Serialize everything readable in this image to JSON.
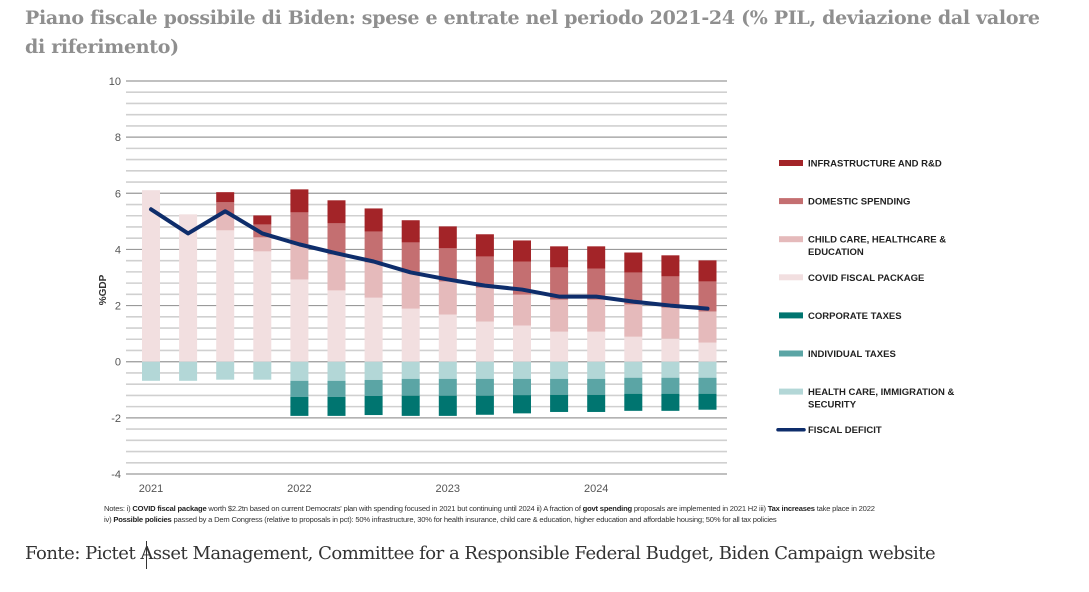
{
  "title": "Piano fiscale possibile di Biden: spese e entrate nel periodo 2021-24 (% PIL, deviazione dal valore di riferimento)",
  "source": "Fonte: Pictet Asset Management, Committee for a Responsible Federal Budget, Biden Campaign website",
  "notes": {
    "line1": [
      {
        "t": "Notes: i) ",
        "b": false
      },
      {
        "t": "COVID fiscal package",
        "b": true
      },
      {
        "t": " worth $2.2tn based on current Democrats' plan with spending focused in 2021 but continuing until 2024 ii) A fraction of ",
        "b": false
      },
      {
        "t": "govt spending",
        "b": true
      },
      {
        "t": " proposals are implemented in 2021 H2 iii) ",
        "b": false
      },
      {
        "t": "Tax increases",
        "b": true
      },
      {
        "t": " take place in 2022",
        "b": false
      }
    ],
    "line2": [
      {
        "t": " iv) ",
        "b": false
      },
      {
        "t": "Possible policies",
        "b": true
      },
      {
        "t": " passed by a Dem Congress (relative to proposals in pct): 50% infrastructure, 30% for health insurance, child care & education, higher education and affordable housing; 50% for all tax policies",
        "b": false
      }
    ]
  },
  "chart_data": {
    "type": "bar",
    "stacked": true,
    "title": "Piano fiscale possibile di Biden: spese e entrate nel periodo 2021-24 (% PIL, deviazione dal valore di riferimento)",
    "xlabel": "",
    "ylabel": "%GDP",
    "ylim": [
      -4,
      10
    ],
    "yticks": [
      -4,
      -2,
      0,
      2,
      4,
      6,
      8,
      10
    ],
    "grid": true,
    "legend_position": "right",
    "categories": [
      "2021 Q1",
      "2021 Q2",
      "2021 Q3",
      "2021 Q4",
      "2022 Q1",
      "2022 Q2",
      "2022 Q3",
      "2022 Q4",
      "2023 Q1",
      "2023 Q2",
      "2023 Q3",
      "2023 Q4",
      "2024 Q1",
      "2024 Q2",
      "2024 Q3",
      "2024 Q4"
    ],
    "xtick_labels": [
      {
        "index": 0,
        "label": "2021"
      },
      {
        "index": 4,
        "label": "2022"
      },
      {
        "index": 8,
        "label": "2023"
      },
      {
        "index": 12,
        "label": "2024"
      }
    ],
    "series": [
      {
        "name": "COVID FISCAL PACKAGE",
        "color": "#f2dfe0",
        "kind": "bar",
        "values": [
          6.11,
          5.25,
          4.68,
          3.93,
          2.93,
          2.54,
          2.28,
          1.89,
          1.68,
          1.43,
          1.29,
          1.07,
          1.07,
          0.89,
          0.82,
          0.68
        ]
      },
      {
        "name": "CHILD CARE, HEALTHCARE & EDUCATION",
        "color": "#e5babb",
        "kind": "bar",
        "values": [
          0,
          0,
          0.57,
          0.5,
          1.25,
          1.28,
          1.26,
          1.29,
          1.18,
          1.21,
          1.1,
          1.14,
          1.14,
          1.15,
          1.11,
          1.11
        ]
      },
      {
        "name": "DOMESTIC SPENDING",
        "color": "#c46f71",
        "kind": "bar",
        "values": [
          0,
          0,
          0.43,
          0.46,
          1.14,
          1.11,
          1.1,
          1.07,
          1.18,
          1.11,
          1.18,
          1.15,
          1.11,
          1.14,
          1.11,
          1.07
        ]
      },
      {
        "name": "INFRASTRUCTURE AND R&D",
        "color": "#a32428",
        "kind": "bar",
        "values": [
          0,
          0,
          0.36,
          0.32,
          0.82,
          0.82,
          0.82,
          0.79,
          0.78,
          0.79,
          0.75,
          0.75,
          0.79,
          0.71,
          0.75,
          0.75
        ]
      },
      {
        "name": "HEALTH CARE, IMMIGRATION & SECURITY",
        "color": "#b3d7d7",
        "kind": "bar",
        "values": [
          -0.68,
          -0.68,
          -0.64,
          -0.64,
          -0.68,
          -0.68,
          -0.65,
          -0.61,
          -0.61,
          -0.61,
          -0.61,
          -0.61,
          -0.61,
          -0.57,
          -0.57,
          -0.57
        ]
      },
      {
        "name": "INDIVIDUAL TAXES",
        "color": "#5ba5a5",
        "kind": "bar",
        "values": [
          0,
          0,
          0,
          0,
          -0.57,
          -0.57,
          -0.57,
          -0.6,
          -0.6,
          -0.6,
          -0.58,
          -0.57,
          -0.57,
          -0.57,
          -0.57,
          -0.57
        ]
      },
      {
        "name": "CORPORATE TAXES",
        "color": "#007570",
        "kind": "bar",
        "values": [
          0,
          0,
          0,
          0,
          -0.68,
          -0.68,
          -0.68,
          -0.72,
          -0.72,
          -0.68,
          -0.65,
          -0.61,
          -0.61,
          -0.61,
          -0.61,
          -0.57
        ]
      },
      {
        "name": "FISCAL DEFICIT",
        "color": "#0e2d6b",
        "kind": "line",
        "values": [
          5.43,
          4.57,
          5.36,
          4.57,
          4.18,
          3.86,
          3.57,
          3.18,
          2.93,
          2.71,
          2.57,
          2.32,
          2.32,
          2.14,
          2.0,
          1.89
        ]
      }
    ],
    "legend": [
      {
        "name": "INFRASTRUCTURE AND R&D",
        "lines": [
          "INFRASTRUCTURE AND R&D"
        ],
        "color": "#a32428",
        "kind": "bar"
      },
      {
        "name": "DOMESTIC SPENDING",
        "lines": [
          "DOMESTIC SPENDING"
        ],
        "color": "#c46f71",
        "kind": "bar"
      },
      {
        "name": "CHILD CARE, HEALTHCARE & EDUCATION",
        "lines": [
          "CHILD CARE, HEALTHCARE &",
          "EDUCATION"
        ],
        "color": "#e5babb",
        "kind": "bar"
      },
      {
        "name": "COVID FISCAL PACKAGE",
        "lines": [
          "COVID FISCAL PACKAGE"
        ],
        "color": "#f2dfe0",
        "kind": "bar"
      },
      {
        "name": "CORPORATE TAXES",
        "lines": [
          "CORPORATE TAXES"
        ],
        "color": "#007570",
        "kind": "bar"
      },
      {
        "name": "INDIVIDUAL TAXES",
        "lines": [
          "INDIVIDUAL TAXES"
        ],
        "color": "#5ba5a5",
        "kind": "bar"
      },
      {
        "name": "HEALTH CARE, IMMIGRATION & SECURITY",
        "lines": [
          "HEALTH CARE, IMMIGRATION &",
          "SECURITY"
        ],
        "color": "#b3d7d7",
        "kind": "bar"
      },
      {
        "name": "FISCAL DEFICIT",
        "lines": [
          "FISCAL DEFICIT"
        ],
        "color": "#0e2d6b",
        "kind": "line"
      }
    ]
  }
}
